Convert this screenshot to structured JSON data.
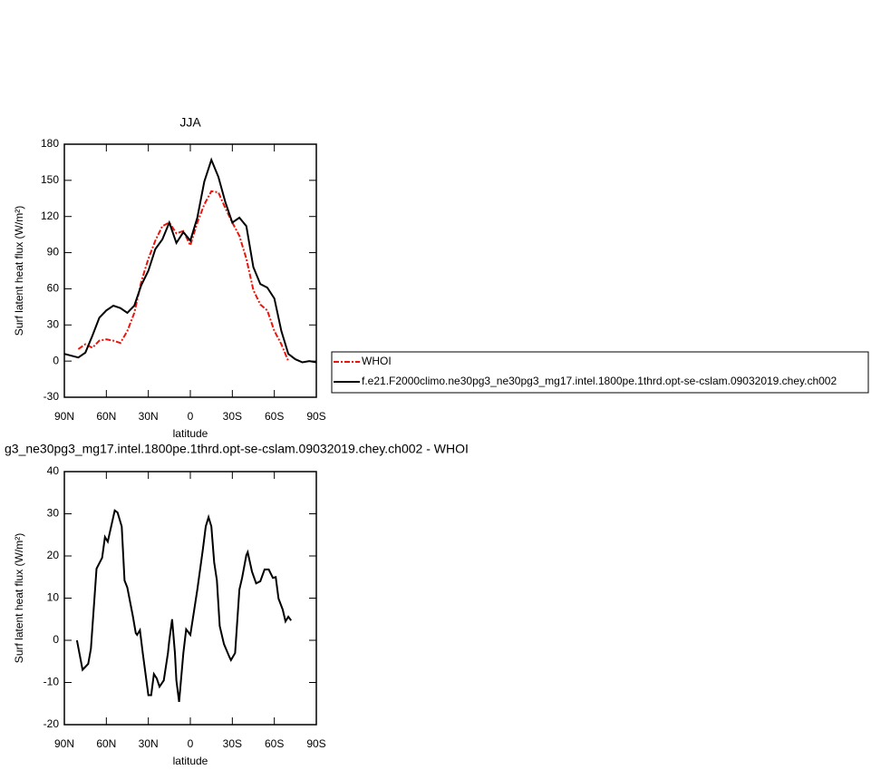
{
  "chart_data": [
    {
      "type": "line",
      "title": "JJA",
      "xlabel": "latitude",
      "ylabel": "Surf latent heat flux (W/m²)",
      "x": [
        90,
        85,
        80,
        75,
        70,
        65,
        60,
        55,
        50,
        45,
        40,
        35,
        30,
        25,
        20,
        15,
        10,
        5,
        0,
        -5,
        -10,
        -15,
        -20,
        -25,
        -30,
        -35,
        -40,
        -45,
        -50,
        -55,
        -60,
        -65,
        -70,
        -75,
        -80,
        -85,
        -90
      ],
      "xlim": [
        90,
        -90
      ],
      "xticks": [
        {
          "value": 90,
          "label": "90N"
        },
        {
          "value": 60,
          "label": "60N"
        },
        {
          "value": 30,
          "label": "30N"
        },
        0,
        {
          "value": -30,
          "label": "30S"
        },
        {
          "value": -60,
          "label": "60S"
        },
        {
          "value": -90,
          "label": "90S"
        }
      ],
      "ylim": [
        -30,
        180
      ],
      "yticks": [
        -30,
        0,
        30,
        60,
        90,
        120,
        150,
        180
      ],
      "legend": "right",
      "series": [
        {
          "name": "WHOI",
          "color": "#e8160c",
          "line_style": "dashed",
          "values": [
            null,
            null,
            10,
            14,
            11,
            17,
            18,
            17,
            15,
            25,
            40,
            66,
            85,
            100,
            112,
            115,
            106,
            108,
            96,
            115,
            130,
            141,
            140,
            127,
            115,
            104,
            85,
            59,
            47,
            42,
            25,
            14,
            0,
            null,
            null,
            null,
            null
          ]
        },
        {
          "name": "f.e21.F2000climo.ne30pg3_ne30pg3_mg17.intel.1800pe.1thrd.opt-se-cslam.09032019.chey.ch002",
          "color": "#000000",
          "line_style": "solid",
          "values": [
            6,
            4.5,
            3,
            7,
            21,
            36,
            42,
            46,
            44,
            40,
            46,
            63,
            75,
            93,
            101,
            115,
            98,
            107,
            100,
            119,
            149,
            167,
            153,
            132,
            115,
            119,
            112,
            78,
            64,
            61,
            52,
            25,
            6,
            1.5,
            -1,
            0,
            -1
          ]
        }
      ]
    },
    {
      "type": "line",
      "title": "g3_ne30pg3_mg17.intel.1800pe.1thrd.opt-se-cslam.09032019.chey.ch002 - WHOI",
      "xlabel": "latitude",
      "ylabel": "Surf latent heat flux (W/m²)",
      "x": [
        81,
        77,
        73,
        71,
        67,
        63,
        61,
        59,
        54,
        52,
        49,
        47,
        45,
        41,
        39,
        38,
        36,
        34,
        30,
        28,
        26,
        24,
        22,
        19,
        16,
        15,
        13,
        11,
        10,
        8,
        5,
        3,
        0,
        -2,
        -5,
        -9,
        -11,
        -13,
        -15,
        -17,
        -19,
        -21,
        -24,
        -28,
        -29,
        -32,
        -35,
        -37,
        -40,
        -41,
        -44,
        -47,
        -50,
        -53,
        -56,
        -59,
        -61,
        -63,
        -66,
        -68,
        -70,
        -72
      ],
      "xlim": [
        90,
        -90
      ],
      "xticks": [
        {
          "value": 90,
          "label": "90N"
        },
        {
          "value": 60,
          "label": "60N"
        },
        {
          "value": 30,
          "label": "30N"
        },
        0,
        {
          "value": -30,
          "label": "30S"
        },
        {
          "value": -60,
          "label": "60S"
        },
        {
          "value": -90,
          "label": "90S"
        }
      ],
      "ylim": [
        -20,
        40
      ],
      "yticks": [
        -20,
        -10,
        0,
        10,
        20,
        30,
        40
      ],
      "series": [
        {
          "color": "#000000",
          "line_style": "solid",
          "values": [
            0,
            -7,
            -5.6,
            -2,
            17,
            19.6,
            24.5,
            23.4,
            30.8,
            30.3,
            27,
            14.2,
            12.5,
            5.6,
            1.7,
            1.3,
            2.4,
            -3,
            -13,
            -13,
            -8,
            -9,
            -11,
            -9.5,
            -3,
            0,
            5,
            -3,
            -9.5,
            -14.6,
            -3,
            2.6,
            1.3,
            5.6,
            12,
            21.7,
            27,
            29.2,
            27,
            18.5,
            14.2,
            3.4,
            -0.9,
            -4,
            -4.7,
            -3,
            12,
            14.8,
            20.2,
            20.9,
            16.3,
            13.5,
            14,
            16.8,
            16.8,
            14.8,
            15,
            9.9,
            7.3,
            4.5,
            5.6,
            4.7
          ]
        }
      ]
    }
  ]
}
